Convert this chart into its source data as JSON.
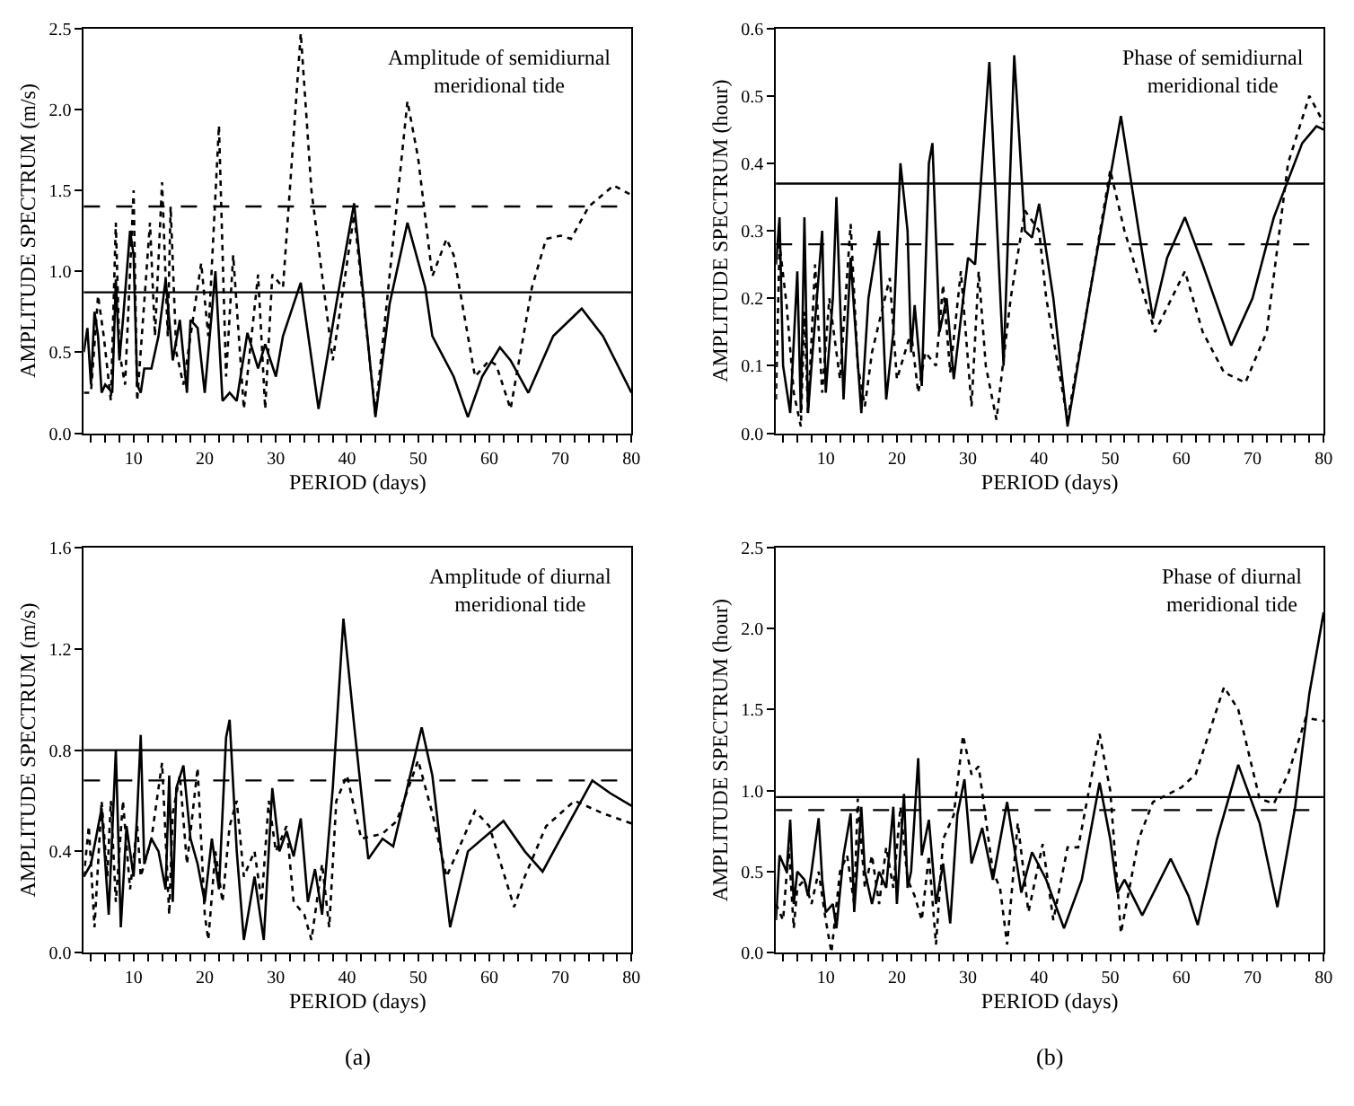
{
  "chart_data": [
    {
      "type": "line",
      "title": "Amplitude of semidiurnal\nmeridional tide",
      "xlabel": "PERIOD (days)",
      "ylabel": "AMPLITUDE SPECTRUM (m/s)",
      "xlim": [
        3,
        80
      ],
      "ylim": [
        0,
        2.5
      ],
      "xticks": [
        {
          "value": 4,
          "label": null
        },
        {
          "value": 6,
          "label": null
        },
        {
          "value": 8,
          "label": null
        },
        10,
        {
          "value": 12,
          "label": null
        },
        {
          "value": 14,
          "label": null
        },
        {
          "value": 16,
          "label": null
        },
        {
          "value": 18,
          "label": null
        },
        20,
        {
          "value": 22,
          "label": null
        },
        {
          "value": 24,
          "label": null
        },
        {
          "value": 26,
          "label": null
        },
        {
          "value": 28,
          "label": null
        },
        30,
        {
          "value": 32,
          "label": null
        },
        {
          "value": 34,
          "label": null
        },
        {
          "value": 36,
          "label": null
        },
        {
          "value": 38,
          "label": null
        },
        40,
        {
          "value": 42,
          "label": null
        },
        {
          "value": 44,
          "label": null
        },
        {
          "value": 46,
          "label": null
        },
        {
          "value": 48,
          "label": null
        },
        50,
        {
          "value": 52,
          "label": null
        },
        {
          "value": 54,
          "label": null
        },
        {
          "value": 56,
          "label": null
        },
        {
          "value": 58,
          "label": null
        },
        60,
        {
          "value": 62,
          "label": null
        },
        {
          "value": 64,
          "label": null
        },
        {
          "value": 66,
          "label": null
        },
        {
          "value": 68,
          "label": null
        },
        70,
        {
          "value": 72,
          "label": null
        },
        {
          "value": 74,
          "label": null
        },
        {
          "value": 76,
          "label": null
        },
        {
          "value": 78,
          "label": null
        },
        80
      ],
      "yticks": [
        {
          "value": 0,
          "label": "0.0"
        },
        {
          "value": 0.5,
          "label": "0.5"
        },
        {
          "value": 1,
          "label": "1.0"
        },
        {
          "value": 1.5,
          "label": "1.5"
        },
        {
          "value": 2,
          "label": "2.0"
        },
        {
          "value": 2.5,
          "label": "2.5"
        }
      ],
      "series": [
        {
          "color": "#000000",
          "line_style": "solid",
          "x": [
            3,
            3.5,
            4,
            4.5,
            5,
            5.5,
            6,
            7,
            7.5,
            8,
            8.5,
            9.5,
            10,
            10.5,
            11,
            11.5,
            12.5,
            13.5,
            14.5,
            15.5,
            16.5,
            17.5,
            18,
            19,
            20,
            21.5,
            22.5,
            23.5,
            24.5,
            26,
            27.5,
            28.5,
            30,
            31,
            33.5,
            36,
            38.5,
            41,
            44,
            46,
            48.5,
            51,
            52,
            55,
            57,
            59,
            61.5,
            63,
            65.5,
            69,
            73,
            76,
            80
          ],
          "values": [
            0.5,
            0.65,
            0.3,
            0.75,
            0.6,
            0.25,
            0.3,
            0.25,
            0.95,
            0.45,
            0.7,
            1.25,
            1.1,
            0.3,
            0.25,
            0.4,
            0.4,
            0.6,
            0.95,
            0.45,
            0.7,
            0.25,
            0.7,
            0.65,
            0.25,
            1.0,
            0.2,
            0.25,
            0.2,
            0.62,
            0.4,
            0.55,
            0.35,
            0.6,
            0.93,
            0.15,
            0.8,
            1.42,
            0.1,
            0.8,
            1.3,
            0.9,
            0.6,
            0.35,
            0.1,
            0.35,
            0.53,
            0.45,
            0.25,
            0.6,
            0.77,
            0.6,
            0.25
          ]
        },
        {
          "color": "#000000",
          "line_style": "dotted",
          "x": [
            3,
            4,
            5,
            5.8,
            6.8,
            7.5,
            8,
            8.8,
            10,
            10.5,
            12.3,
            13,
            14,
            14.8,
            15.2,
            16,
            17,
            19.5,
            20.5,
            22,
            23,
            24,
            25.5,
            27.5,
            28.5,
            29.5,
            31,
            33.5,
            35,
            38,
            41,
            44,
            48.5,
            50,
            52,
            54,
            55,
            58,
            60,
            61,
            63,
            66,
            68,
            70,
            71.5,
            74,
            77.5,
            80
          ],
          "values": [
            0.25,
            0.25,
            0.85,
            0.6,
            0.2,
            1.3,
            0.5,
            0.3,
            1.5,
            0.2,
            1.3,
            0.6,
            1.55,
            0.6,
            1.4,
            0.5,
            0.3,
            1.05,
            0.6,
            1.9,
            0.35,
            1.1,
            0.15,
            0.98,
            0.15,
            0.98,
            0.9,
            2.47,
            1.5,
            0.45,
            1.35,
            0.12,
            2.05,
            1.7,
            0.97,
            1.2,
            1.1,
            0.35,
            0.45,
            0.42,
            0.15,
            0.9,
            1.2,
            1.22,
            1.2,
            1.4,
            1.53,
            1.47
          ]
        }
      ],
      "ref_lines": [
        {
          "axis": "y",
          "value": 0.87,
          "color": "#000000",
          "line_style": "solid"
        },
        {
          "axis": "y",
          "value": 1.4,
          "color": "#000000",
          "line_style": "dashed"
        }
      ]
    },
    {
      "type": "line",
      "title": "Phase of semidiurnal\nmeridional tide",
      "xlabel": "PERIOD (days)",
      "ylabel": "AMPLITUDE SPECTRUM (hour)",
      "xlim": [
        3,
        80
      ],
      "ylim": [
        0,
        0.6
      ],
      "xticks": [
        {
          "value": 4,
          "label": null
        },
        {
          "value": 6,
          "label": null
        },
        {
          "value": 8,
          "label": null
        },
        10,
        {
          "value": 12,
          "label": null
        },
        {
          "value": 14,
          "label": null
        },
        {
          "value": 16,
          "label": null
        },
        {
          "value": 18,
          "label": null
        },
        20,
        {
          "value": 22,
          "label": null
        },
        {
          "value": 24,
          "label": null
        },
        {
          "value": 26,
          "label": null
        },
        {
          "value": 28,
          "label": null
        },
        30,
        {
          "value": 32,
          "label": null
        },
        {
          "value": 34,
          "label": null
        },
        {
          "value": 36,
          "label": null
        },
        {
          "value": 38,
          "label": null
        },
        40,
        {
          "value": 42,
          "label": null
        },
        {
          "value": 44,
          "label": null
        },
        {
          "value": 46,
          "label": null
        },
        {
          "value": 48,
          "label": null
        },
        50,
        {
          "value": 52,
          "label": null
        },
        {
          "value": 54,
          "label": null
        },
        {
          "value": 56,
          "label": null
        },
        {
          "value": 58,
          "label": null
        },
        60,
        {
          "value": 62,
          "label": null
        },
        {
          "value": 64,
          "label": null
        },
        {
          "value": 66,
          "label": null
        },
        {
          "value": 68,
          "label": null
        },
        70,
        {
          "value": 72,
          "label": null
        },
        {
          "value": 74,
          "label": null
        },
        {
          "value": 76,
          "label": null
        },
        {
          "value": 78,
          "label": null
        },
        80
      ],
      "yticks": [
        {
          "value": 0,
          "label": "0.0"
        },
        {
          "value": 0.1,
          "label": "0.1"
        },
        {
          "value": 0.2,
          "label": "0.2"
        },
        {
          "value": 0.3,
          "label": "0.3"
        },
        {
          "value": 0.4,
          "label": "0.4"
        },
        {
          "value": 0.5,
          "label": "0.5"
        },
        {
          "value": 0.6,
          "label": "0.6"
        }
      ],
      "series": [
        {
          "color": "#000000",
          "line_style": "solid",
          "x": [
            3,
            3.5,
            4,
            5,
            6,
            6.5,
            7,
            7.5,
            8,
            9.5,
            10,
            11,
            11.5,
            12.5,
            13.5,
            14,
            15,
            16,
            17.5,
            18.5,
            19.5,
            20.5,
            21.5,
            22,
            22.5,
            23.5,
            24.5,
            25,
            26,
            27,
            28,
            30,
            31,
            33,
            35,
            36.5,
            38,
            39,
            40,
            42,
            44,
            47,
            51.5,
            54,
            56,
            58,
            60.5,
            63,
            67,
            70,
            73,
            77,
            79,
            80
          ],
          "values": [
            0.25,
            0.32,
            0.1,
            0.03,
            0.24,
            0.03,
            0.32,
            0.03,
            0.1,
            0.3,
            0.06,
            0.2,
            0.35,
            0.05,
            0.26,
            0.18,
            0.03,
            0.2,
            0.3,
            0.05,
            0.15,
            0.4,
            0.3,
            0.12,
            0.19,
            0.07,
            0.4,
            0.43,
            0.15,
            0.2,
            0.08,
            0.26,
            0.25,
            0.55,
            0.1,
            0.56,
            0.3,
            0.29,
            0.34,
            0.2,
            0.01,
            0.2,
            0.47,
            0.3,
            0.17,
            0.26,
            0.32,
            0.25,
            0.13,
            0.2,
            0.32,
            0.43,
            0.455,
            0.45
          ]
        },
        {
          "color": "#000000",
          "line_style": "dotted",
          "x": [
            3,
            3.5,
            4.5,
            5.5,
            6.5,
            7,
            7.5,
            8.5,
            9.5,
            10.5,
            12,
            13.5,
            14.5,
            15.5,
            16.5,
            19,
            20,
            22,
            23,
            24,
            25.5,
            26.5,
            27.5,
            29,
            30.5,
            31.5,
            32.5,
            34,
            36,
            38,
            40,
            41,
            44,
            47,
            50,
            52,
            56.3,
            60.5,
            63,
            66,
            69,
            72,
            75,
            78,
            80
          ],
          "values": [
            0.05,
            0.28,
            0.19,
            0.06,
            0.01,
            0.18,
            0.03,
            0.25,
            0.06,
            0.2,
            0.08,
            0.31,
            0.1,
            0.04,
            0.12,
            0.23,
            0.08,
            0.15,
            0.06,
            0.12,
            0.1,
            0.22,
            0.09,
            0.24,
            0.04,
            0.24,
            0.1,
            0.02,
            0.2,
            0.33,
            0.3,
            0.2,
            0.02,
            0.2,
            0.39,
            0.3,
            0.15,
            0.24,
            0.15,
            0.09,
            0.075,
            0.15,
            0.4,
            0.5,
            0.46
          ]
        }
      ],
      "ref_lines": [
        {
          "axis": "y",
          "value": 0.37,
          "color": "#000000",
          "line_style": "solid"
        },
        {
          "axis": "y",
          "value": 0.28,
          "color": "#000000",
          "line_style": "dashed"
        }
      ]
    },
    {
      "type": "line",
      "title": "Amplitude of diurnal\nmeridional tide",
      "xlabel": "PERIOD (days)",
      "ylabel": "AMPLITUDE SPECTRUM (m/s)",
      "xlim": [
        3,
        80
      ],
      "ylim": [
        0,
        1.6
      ],
      "annotations": [
        "(a)"
      ],
      "xticks": [
        {
          "value": 4,
          "label": null
        },
        {
          "value": 6,
          "label": null
        },
        {
          "value": 8,
          "label": null
        },
        10,
        {
          "value": 12,
          "label": null
        },
        {
          "value": 14,
          "label": null
        },
        {
          "value": 16,
          "label": null
        },
        {
          "value": 18,
          "label": null
        },
        20,
        {
          "value": 22,
          "label": null
        },
        {
          "value": 24,
          "label": null
        },
        {
          "value": 26,
          "label": null
        },
        {
          "value": 28,
          "label": null
        },
        30,
        {
          "value": 32,
          "label": null
        },
        {
          "value": 34,
          "label": null
        },
        {
          "value": 36,
          "label": null
        },
        {
          "value": 38,
          "label": null
        },
        40,
        {
          "value": 42,
          "label": null
        },
        {
          "value": 44,
          "label": null
        },
        {
          "value": 46,
          "label": null
        },
        {
          "value": 48,
          "label": null
        },
        50,
        {
          "value": 52,
          "label": null
        },
        {
          "value": 54,
          "label": null
        },
        {
          "value": 56,
          "label": null
        },
        {
          "value": 58,
          "label": null
        },
        60,
        {
          "value": 62,
          "label": null
        },
        {
          "value": 64,
          "label": null
        },
        {
          "value": 66,
          "label": null
        },
        {
          "value": 68,
          "label": null
        },
        70,
        {
          "value": 72,
          "label": null
        },
        {
          "value": 74,
          "label": null
        },
        {
          "value": 76,
          "label": null
        },
        {
          "value": 78,
          "label": null
        },
        80
      ],
      "yticks": [
        {
          "value": 0,
          "label": "0.0"
        },
        {
          "value": 0.4,
          "label": "0.4"
        },
        {
          "value": 0.8,
          "label": "0.8"
        },
        {
          "value": 1.2,
          "label": "1.2"
        },
        {
          "value": 1.6,
          "label": "1.6"
        }
      ],
      "series": [
        {
          "color": "#000000",
          "line_style": "solid",
          "x": [
            3,
            4,
            5.5,
            6.5,
            7.5,
            8.2,
            9,
            10,
            10.5,
            11,
            11.5,
            12.5,
            13.5,
            14.5,
            15,
            15.5,
            16,
            17,
            18,
            19,
            20,
            21,
            22,
            23,
            23.5,
            24.5,
            25.5,
            27,
            28.3,
            29.5,
            30.5,
            31.5,
            32.5,
            33.5,
            34.5,
            35.5,
            36.5,
            38,
            39.5,
            41,
            43,
            45,
            46.5,
            50.5,
            52,
            54.5,
            57,
            62,
            65,
            67.5,
            70,
            74.5,
            77,
            80
          ],
          "values": [
            0.3,
            0.35,
            0.57,
            0.15,
            0.8,
            0.1,
            0.5,
            0.3,
            0.55,
            0.86,
            0.35,
            0.45,
            0.4,
            0.25,
            0.7,
            0.2,
            0.65,
            0.74,
            0.45,
            0.35,
            0.2,
            0.45,
            0.25,
            0.85,
            0.92,
            0.4,
            0.05,
            0.3,
            0.05,
            0.65,
            0.4,
            0.48,
            0.38,
            0.53,
            0.2,
            0.33,
            0.15,
            0.65,
            1.32,
            0.9,
            0.37,
            0.45,
            0.42,
            0.89,
            0.7,
            0.1,
            0.4,
            0.52,
            0.4,
            0.32,
            0.45,
            0.68,
            0.63,
            0.58
          ]
        },
        {
          "color": "#000000",
          "line_style": "dotted",
          "x": [
            3,
            3.7,
            4.5,
            5.5,
            6.3,
            6.8,
            7.5,
            8.5,
            9.5,
            10.5,
            11,
            12.5,
            14,
            15,
            15.5,
            16.5,
            17.5,
            19,
            20,
            20.5,
            21.5,
            22.5,
            23.5,
            24.5,
            25.5,
            27,
            28,
            29,
            30,
            31.5,
            32.5,
            34,
            35,
            36.5,
            37.5,
            38.5,
            40,
            42,
            45,
            47,
            50,
            52,
            54,
            58,
            60,
            63.5,
            65,
            68,
            72,
            76,
            80
          ],
          "values": [
            0.3,
            0.5,
            0.1,
            0.6,
            0.3,
            0.6,
            0.2,
            0.6,
            0.25,
            0.5,
            0.3,
            0.45,
            0.75,
            0.15,
            0.55,
            0.7,
            0.35,
            0.73,
            0.15,
            0.05,
            0.4,
            0.2,
            0.5,
            0.6,
            0.3,
            0.4,
            0.2,
            0.6,
            0.4,
            0.5,
            0.2,
            0.15,
            0.05,
            0.35,
            0.1,
            0.6,
            0.7,
            0.45,
            0.47,
            0.52,
            0.76,
            0.55,
            0.3,
            0.56,
            0.5,
            0.18,
            0.3,
            0.5,
            0.6,
            0.55,
            0.51
          ]
        }
      ],
      "ref_lines": [
        {
          "axis": "y",
          "value": 0.8,
          "color": "#000000",
          "line_style": "solid"
        },
        {
          "axis": "y",
          "value": 0.68,
          "color": "#000000",
          "line_style": "dashed"
        }
      ]
    },
    {
      "type": "line",
      "title": "Phase of diurnal\nmeridional tide",
      "xlabel": "PERIOD (days)",
      "ylabel": "AMPLITUDE SPECTRUM (hour)",
      "xlim": [
        3,
        80
      ],
      "ylim": [
        0,
        2.5
      ],
      "annotations": [
        "(b)"
      ],
      "xticks": [
        {
          "value": 4,
          "label": null
        },
        {
          "value": 6,
          "label": null
        },
        {
          "value": 8,
          "label": null
        },
        10,
        {
          "value": 12,
          "label": null
        },
        {
          "value": 14,
          "label": null
        },
        {
          "value": 16,
          "label": null
        },
        {
          "value": 18,
          "label": null
        },
        20,
        {
          "value": 22,
          "label": null
        },
        {
          "value": 24,
          "label": null
        },
        {
          "value": 26,
          "label": null
        },
        {
          "value": 28,
          "label": null
        },
        30,
        {
          "value": 32,
          "label": null
        },
        {
          "value": 34,
          "label": null
        },
        {
          "value": 36,
          "label": null
        },
        {
          "value": 38,
          "label": null
        },
        40,
        {
          "value": 42,
          "label": null
        },
        {
          "value": 44,
          "label": null
        },
        {
          "value": 46,
          "label": null
        },
        {
          "value": 48,
          "label": null
        },
        50,
        {
          "value": 52,
          "label": null
        },
        {
          "value": 54,
          "label": null
        },
        {
          "value": 56,
          "label": null
        },
        {
          "value": 58,
          "label": null
        },
        60,
        {
          "value": 62,
          "label": null
        },
        {
          "value": 64,
          "label": null
        },
        {
          "value": 66,
          "label": null
        },
        {
          "value": 68,
          "label": null
        },
        70,
        {
          "value": 72,
          "label": null
        },
        {
          "value": 74,
          "label": null
        },
        {
          "value": 76,
          "label": null
        },
        {
          "value": 78,
          "label": null
        },
        80
      ],
      "yticks": [
        {
          "value": 0,
          "label": "0.0"
        },
        {
          "value": 0.5,
          "label": "0.5"
        },
        {
          "value": 1,
          "label": "1.0"
        },
        {
          "value": 1.5,
          "label": "1.5"
        },
        {
          "value": 2,
          "label": "2.0"
        },
        {
          "value": 2.5,
          "label": "2.5"
        }
      ],
      "series": [
        {
          "color": "#000000",
          "line_style": "solid",
          "x": [
            3,
            3.5,
            4.5,
            5,
            5.5,
            6,
            7,
            7.5,
            8,
            9,
            9.5,
            10,
            11,
            11.5,
            12.5,
            13.5,
            14,
            15,
            15.5,
            16.5,
            17.5,
            18.5,
            19.5,
            20,
            21,
            21.5,
            22,
            23,
            23.5,
            24.5,
            25.5,
            26.5,
            27.5,
            28.5,
            29.5,
            30.5,
            32,
            33.5,
            35.5,
            37.5,
            39,
            41,
            43.5,
            46,
            48.5,
            50,
            51,
            52,
            54.5,
            58.5,
            61,
            62.3,
            65,
            68,
            71,
            73.5,
            76,
            78,
            80
          ],
          "values": [
            0.2,
            0.6,
            0.5,
            0.82,
            0.3,
            0.5,
            0.45,
            0.35,
            0.5,
            0.83,
            0.45,
            0.25,
            0.3,
            0.15,
            0.6,
            0.86,
            0.25,
            0.9,
            0.5,
            0.3,
            0.5,
            0.4,
            0.9,
            0.3,
            0.98,
            0.4,
            0.5,
            1.2,
            0.6,
            0.82,
            0.3,
            0.55,
            0.18,
            0.85,
            1.07,
            0.55,
            0.77,
            0.45,
            0.93,
            0.37,
            0.62,
            0.45,
            0.15,
            0.45,
            1.05,
            0.7,
            0.37,
            0.45,
            0.23,
            0.58,
            0.35,
            0.17,
            0.7,
            1.16,
            0.8,
            0.28,
            0.9,
            1.6,
            2.1
          ]
        },
        {
          "color": "#000000",
          "line_style": "dotted",
          "x": [
            3,
            4,
            4.8,
            5.5,
            6,
            7,
            8,
            9,
            10,
            10.8,
            12,
            13,
            14,
            14.5,
            15.5,
            16.5,
            17.5,
            18.5,
            19.5,
            20.5,
            21.5,
            22.5,
            23.5,
            24.5,
            25.5,
            26.5,
            28,
            29.3,
            30.5,
            31.5,
            33.5,
            34.5,
            35.5,
            37,
            38.5,
            40.5,
            42,
            44,
            45.5,
            48.5,
            50,
            51.5,
            54,
            56,
            60,
            62,
            66,
            68,
            71,
            73,
            75,
            77.5,
            80
          ],
          "values": [
            0.3,
            0.2,
            0.65,
            0.15,
            0.4,
            0.45,
            0.3,
            0.5,
            0.2,
            0.0,
            0.5,
            0.6,
            0.3,
            0.95,
            0.4,
            0.6,
            0.3,
            0.65,
            0.4,
            0.9,
            0.45,
            0.35,
            0.2,
            0.6,
            0.05,
            0.7,
            0.85,
            1.34,
            1.1,
            1.15,
            0.5,
            0.4,
            0.05,
            0.8,
            0.25,
            0.67,
            0.2,
            0.65,
            0.65,
            1.35,
            1.0,
            0.12,
            0.7,
            0.93,
            1.02,
            1.1,
            1.64,
            1.5,
            0.95,
            0.92,
            1.1,
            1.45,
            1.43
          ]
        }
      ],
      "ref_lines": [
        {
          "axis": "y",
          "value": 0.96,
          "color": "#000000",
          "line_style": "solid"
        },
        {
          "axis": "y",
          "value": 0.88,
          "color": "#000000",
          "line_style": "dashed"
        }
      ]
    }
  ]
}
